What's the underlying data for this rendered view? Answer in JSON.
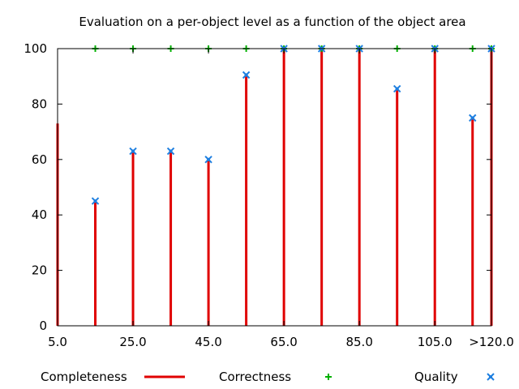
{
  "chart_data": {
    "type": "bar",
    "title": "Evaluation on a per-object level as a function of the object area",
    "xlabel": "",
    "ylabel": "",
    "ylim": [
      0,
      100
    ],
    "xlim": [
      5,
      120
    ],
    "grid": false,
    "legend_position": "bottom",
    "y_ticks": [
      "0",
      "20",
      "40",
      "60",
      "80",
      "100"
    ],
    "x_ticks": [
      {
        "value": 5,
        "label": "5.0"
      },
      {
        "value": 25,
        "label": "25.0"
      },
      {
        "value": 45,
        "label": "45.0"
      },
      {
        "value": 65,
        "label": "65.0"
      },
      {
        "value": 85,
        "label": "85.0"
      },
      {
        "value": 105,
        "label": "105.0"
      },
      {
        "value": 120,
        "label": ">120.0"
      }
    ],
    "x": [
      5,
      15,
      25,
      35,
      45,
      55,
      65,
      75,
      85,
      95,
      105,
      115,
      120
    ],
    "series": [
      {
        "name": "Completeness",
        "style": "impulse",
        "color": "#e00000",
        "values": [
          73,
          45,
          63,
          63,
          60,
          90,
          100,
          100,
          100,
          86,
          100,
          75,
          100
        ]
      },
      {
        "name": "Correctness",
        "style": "plus-marker",
        "color": "#00b000",
        "values": [
          null,
          100,
          100,
          100,
          100,
          100,
          100,
          100,
          100,
          100,
          100,
          100,
          100
        ]
      },
      {
        "name": "Quality",
        "style": "cross-marker",
        "color": "#1e7fe0",
        "values": [
          null,
          45,
          63,
          63,
          60,
          90.5,
          100,
          100,
          100,
          85.5,
          100,
          75,
          100
        ]
      }
    ]
  }
}
